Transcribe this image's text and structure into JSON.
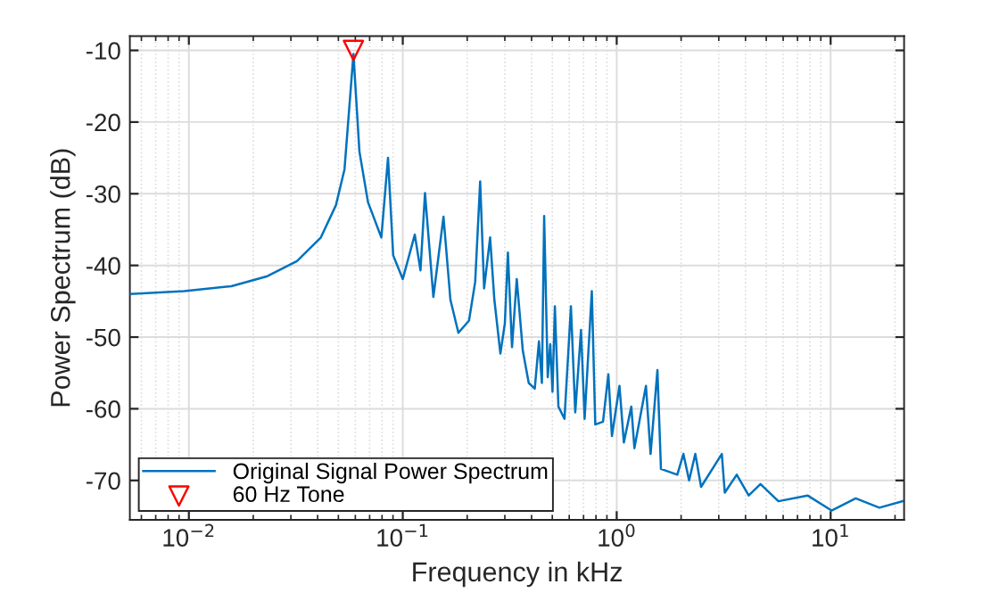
{
  "chart_data": {
    "type": "line",
    "log": "x",
    "xlabel": "Frequency in kHz",
    "ylabel": "Power Spectrum (dB)",
    "xlim": [
      0.0053,
      22.05
    ],
    "ylim": [
      -75.5,
      -8
    ],
    "xticks": [
      {
        "value": 0.01,
        "label": "10$^{−2}$"
      },
      {
        "value": 0.1,
        "label": "10$^{−1}$"
      },
      {
        "value": 1,
        "label": "10$^{0}$"
      },
      {
        "value": 10,
        "label": "10$^{1}$"
      }
    ],
    "yticks": [
      -70,
      -60,
      -50,
      -40,
      -30,
      -20,
      -10
    ],
    "grid": true,
    "legend": "bottom left",
    "series": [
      {
        "name": "Original Signal Power Spectrum",
        "color": "#0072bd",
        "marker": "none",
        "x": [
          0.0053,
          0.0095,
          0.0158,
          0.0233,
          0.032,
          0.0414,
          0.0487,
          0.0534,
          0.0588,
          0.0627,
          0.0688,
          0.0794,
          0.0853,
          0.0902,
          0.1,
          0.1138,
          0.121,
          0.127,
          0.139,
          0.155,
          0.167,
          0.182,
          0.204,
          0.218,
          0.23,
          0.24,
          0.256,
          0.268,
          0.286,
          0.3,
          0.31,
          0.324,
          0.341,
          0.364,
          0.388,
          0.414,
          0.433,
          0.447,
          0.458,
          0.476,
          0.489,
          0.501,
          0.514,
          0.534,
          0.57,
          0.611,
          0.64,
          0.681,
          0.708,
          0.765,
          0.794,
          0.863,
          0.914,
          0.95,
          1.03,
          1.08,
          1.17,
          1.21,
          1.37,
          1.44,
          1.55,
          1.61,
          1.92,
          2.05,
          2.18,
          2.33,
          2.48,
          3.1,
          3.2,
          3.64,
          4.14,
          4.7,
          5.7,
          7.8,
          10.1,
          13.1,
          16.9,
          21.7
        ],
        "values": [
          -44.0,
          -43.6,
          -42.9,
          -41.5,
          -39.4,
          -36.1,
          -31.6,
          -26.6,
          -10.5,
          -24.1,
          -31.2,
          -36.1,
          -25.0,
          -38.6,
          -41.9,
          -35.7,
          -40.7,
          -29.9,
          -44.4,
          -33.2,
          -44.8,
          -49.4,
          -47.7,
          -42.3,
          -28.3,
          -43.2,
          -36.1,
          -44.8,
          -52.3,
          -48.1,
          -38.2,
          -51.4,
          -41.9,
          -51.9,
          -56.4,
          -57.2,
          -50.6,
          -56.4,
          -33.1,
          -55.6,
          -51.0,
          -57.6,
          -45.7,
          -59.7,
          -61.4,
          -45.7,
          -60.5,
          -49.0,
          -61.4,
          -43.6,
          -62.2,
          -61.8,
          -55.2,
          -63.8,
          -56.8,
          -64.7,
          -59.7,
          -65.5,
          -56.8,
          -66.3,
          -54.6,
          -68.4,
          -69.2,
          -66.3,
          -70.0,
          -66.3,
          -70.9,
          -66.3,
          -71.7,
          -69.2,
          -72.1,
          -70.5,
          -72.9,
          -72.1,
          -74.2,
          -72.5,
          -73.8,
          -72.9
        ]
      },
      {
        "name": "60 Hz Tone",
        "type": "scatter",
        "color": "#ff0000",
        "marker": "triangle",
        "x": [
          0.0588
        ],
        "values": [
          -10
        ]
      }
    ]
  }
}
